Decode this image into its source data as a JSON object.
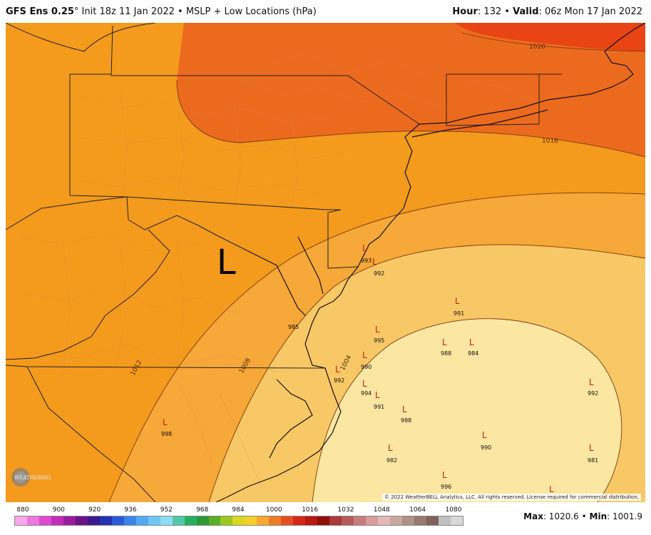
{
  "header": {
    "model": "GFS Ens 0.25",
    "degree": "°",
    "init": " Init 18z 11 Jan 2022",
    "bullet1": " • ",
    "field": "MSLP + Low Locations (hPa)",
    "hour_label": "Hour",
    "hour_value": ": 132",
    "bullet2": " • ",
    "valid_label": "Valid",
    "valid_value": ": 06z Mon 17 Jan 2022"
  },
  "footer": {
    "max_label": "Max",
    "max_value": ": 1020.6",
    "bullet": " • ",
    "min_label": "Min",
    "min_value": ": 1001.9",
    "copyright": "© 2022 WeatherBELL Analytics, LLC. All rights reserved. License required for commercial distribution.",
    "logo_text": "WEATHERBELL"
  },
  "colorbar": {
    "ticks": [
      "880",
      "900",
      "920",
      "936",
      "952",
      "968",
      "984",
      "1000",
      "1016",
      "1032",
      "1048",
      "1064",
      "1080"
    ],
    "colors": [
      "#f7a8e8",
      "#ee78de",
      "#e048d0",
      "#c22cb8",
      "#9a1c9a",
      "#6a1488",
      "#3c1a8c",
      "#2432b4",
      "#2c5ad6",
      "#3a86e8",
      "#52aaf2",
      "#6ec8f6",
      "#8cdcf4",
      "#52c8a8",
      "#28b060",
      "#2c9a34",
      "#58b028",
      "#9cc820",
      "#d8d820",
      "#f4d028",
      "#f8a830",
      "#f07c28",
      "#e64e20",
      "#d42818",
      "#b81810",
      "#901008",
      "#a83a3a",
      "#b85a5a",
      "#c87c7c",
      "#d89c9c",
      "#e4b8b8",
      "#c8a8a0",
      "#b09088",
      "#987870",
      "#806058",
      "#c0c0c0",
      "#d8d8d8"
    ]
  },
  "isobars": [
    "1020",
    "1016",
    "1012",
    "1008",
    "1004"
  ],
  "lows": [
    {
      "value": "993"
    },
    {
      "value": "992"
    },
    {
      "value": "991"
    },
    {
      "value": "995"
    },
    {
      "value": "988"
    },
    {
      "value": "984"
    },
    {
      "value": "990"
    },
    {
      "value": "992"
    },
    {
      "value": "994"
    },
    {
      "value": "991"
    },
    {
      "value": "988"
    },
    {
      "value": "992"
    },
    {
      "value": "990"
    },
    {
      "value": "982"
    },
    {
      "value": "981"
    },
    {
      "value": "996"
    },
    {
      "value": "998"
    },
    {
      "value": "985"
    }
  ],
  "ensemble_mean_low": "L"
}
